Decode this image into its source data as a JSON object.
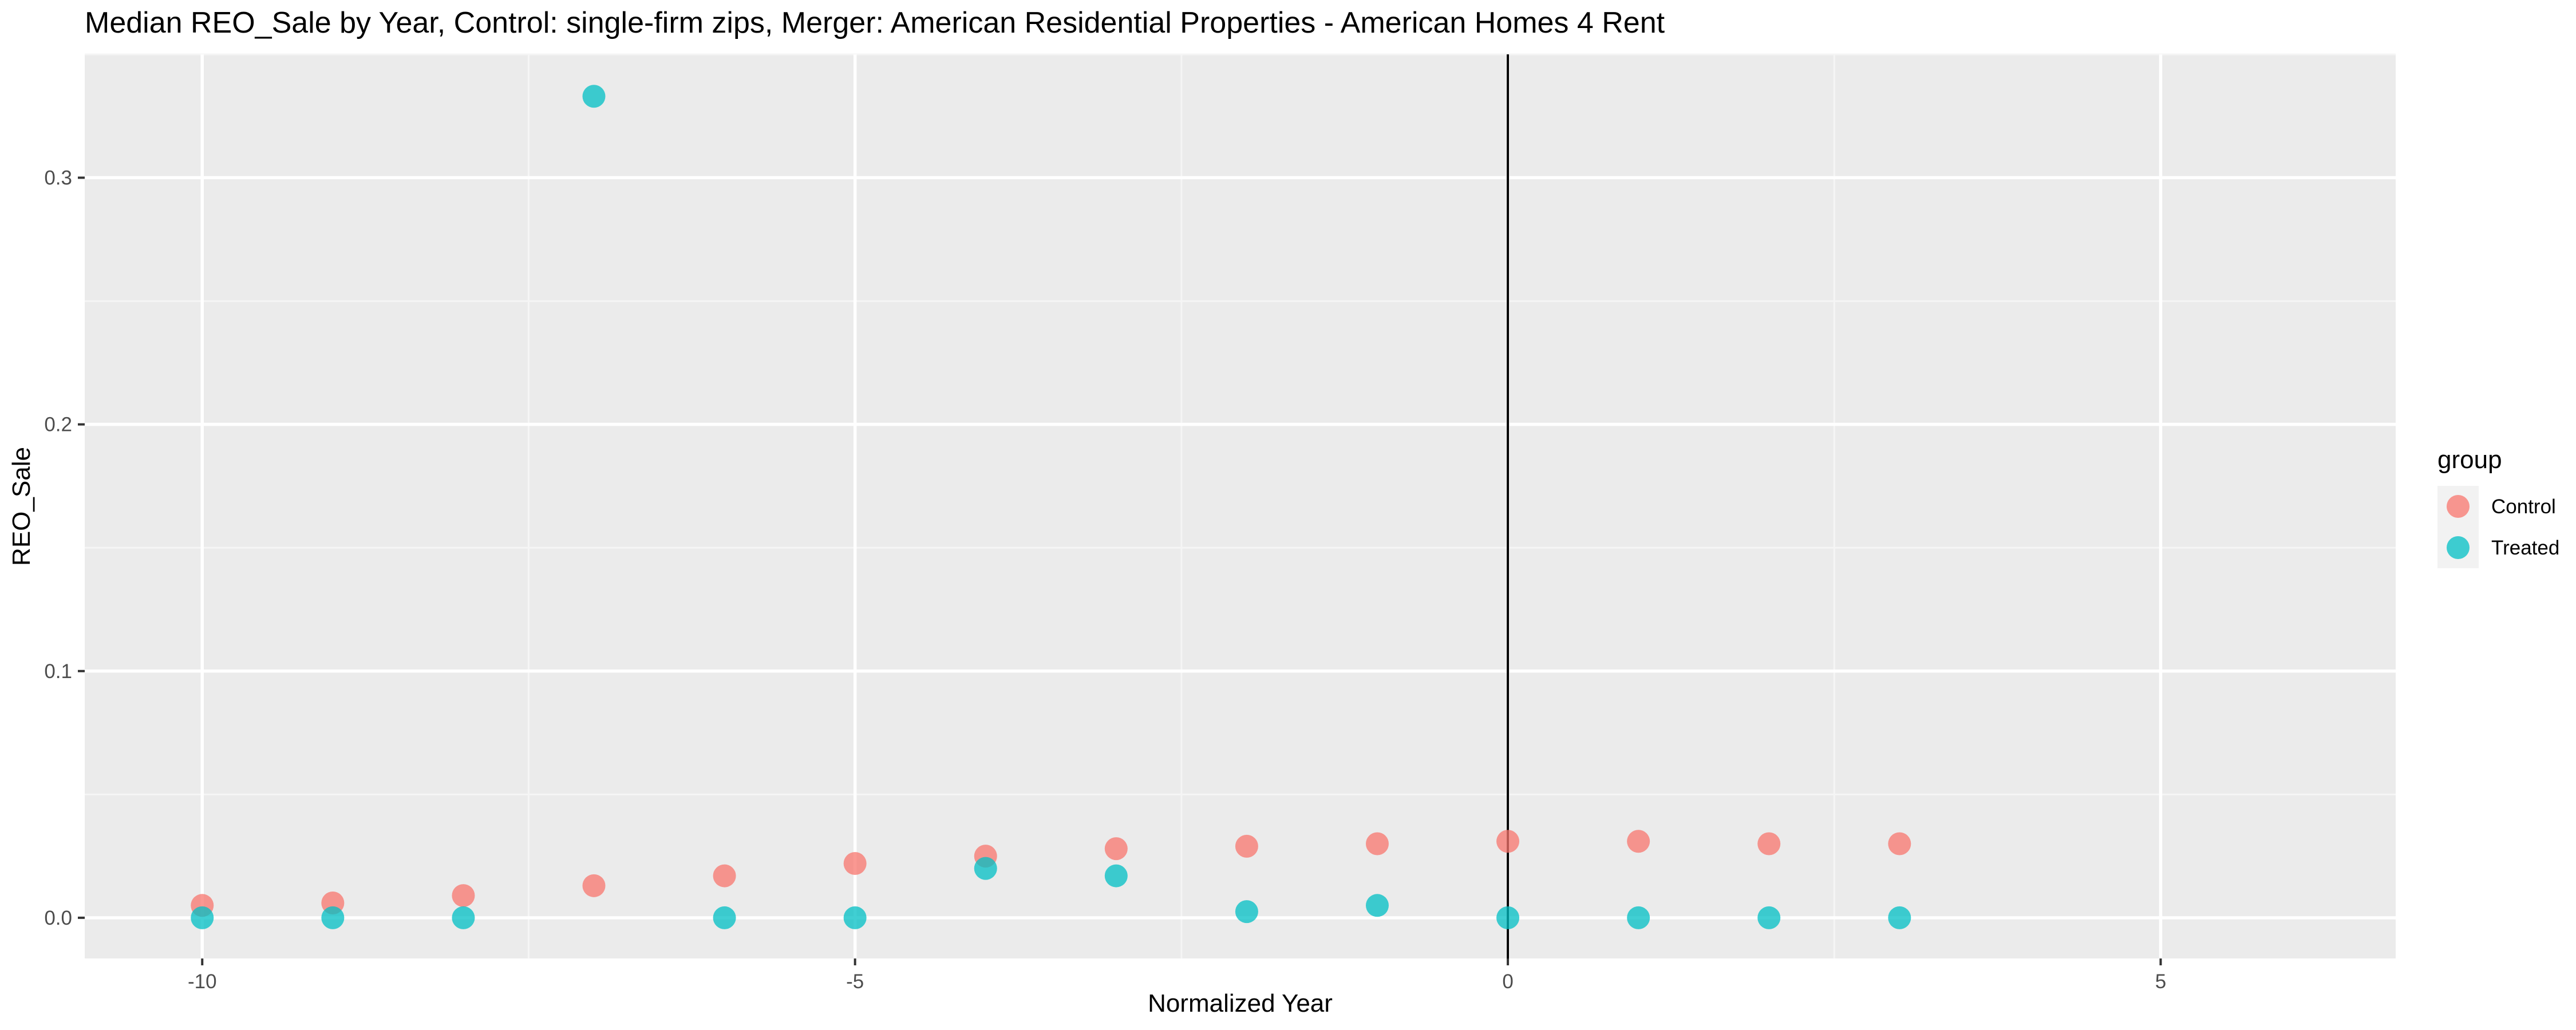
{
  "chart_data": {
    "type": "scatter",
    "title": "Median REO_Sale by Year, Control: single-firm zips, Merger: American Residential Properties - American Homes 4 Rent",
    "xlabel": "Normalized Year",
    "ylabel": "REO_Sale",
    "xlim": [
      -10.9,
      6.8
    ],
    "ylim": [
      -0.0165,
      0.35
    ],
    "x_ticks": [
      {
        "value": -10,
        "label": "-10"
      },
      {
        "value": -5,
        "label": "-5"
      },
      {
        "value": 0,
        "label": "0"
      },
      {
        "value": 5,
        "label": "5"
      }
    ],
    "y_ticks": [
      {
        "value": 0.0,
        "label": "0.0"
      },
      {
        "value": 0.1,
        "label": "0.1"
      },
      {
        "value": 0.2,
        "label": "0.2"
      },
      {
        "value": 0.3,
        "label": "0.3"
      }
    ],
    "vline": 0,
    "grid": true,
    "legend": {
      "title": "group",
      "position": "right"
    },
    "series": [
      {
        "name": "Control",
        "color": "#F8766D",
        "x": [
          -10,
          -9,
          -8,
          -7,
          -6,
          -5,
          -4,
          -3,
          -2,
          -1,
          0,
          1,
          2,
          3
        ],
        "y": [
          0.005,
          0.006,
          0.009,
          0.013,
          0.017,
          0.022,
          0.025,
          0.028,
          0.029,
          0.03,
          0.031,
          0.031,
          0.03,
          0.03
        ]
      },
      {
        "name": "Treated",
        "color": "#00BFC4",
        "x": [
          -10,
          -9,
          -8,
          -7,
          -6,
          -5,
          -4,
          -3,
          -2,
          -1,
          0,
          1,
          2,
          3
        ],
        "y": [
          0.0,
          0.0,
          0.0,
          0.333,
          0.0,
          0.0,
          0.02,
          0.017,
          0.0025,
          0.005,
          0.0,
          0.0,
          0.0,
          0.0
        ]
      }
    ]
  }
}
